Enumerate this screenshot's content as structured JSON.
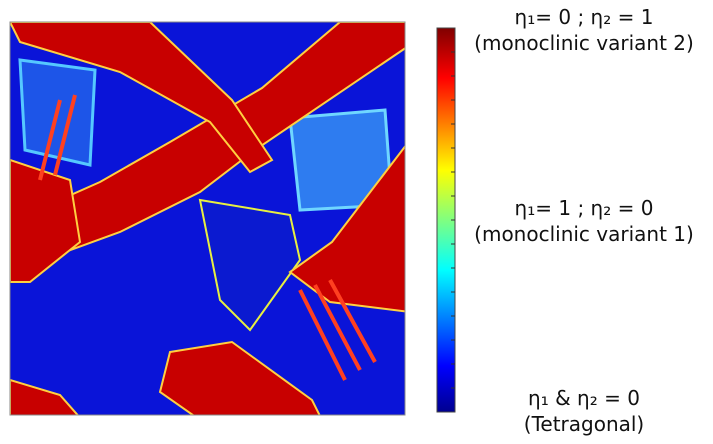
{
  "colorbar_labels": [
    {
      "line1": "η₁= 0 ; η₂ = 1",
      "line2": "(monoclinic variant 2)"
    },
    {
      "line1": "η₁= 1 ; η₂ = 0",
      "line2": "(monoclinic variant 1)"
    },
    {
      "line1": "η₁ & η₂ = 0",
      "line2": "(Tetragonal)"
    }
  ]
}
